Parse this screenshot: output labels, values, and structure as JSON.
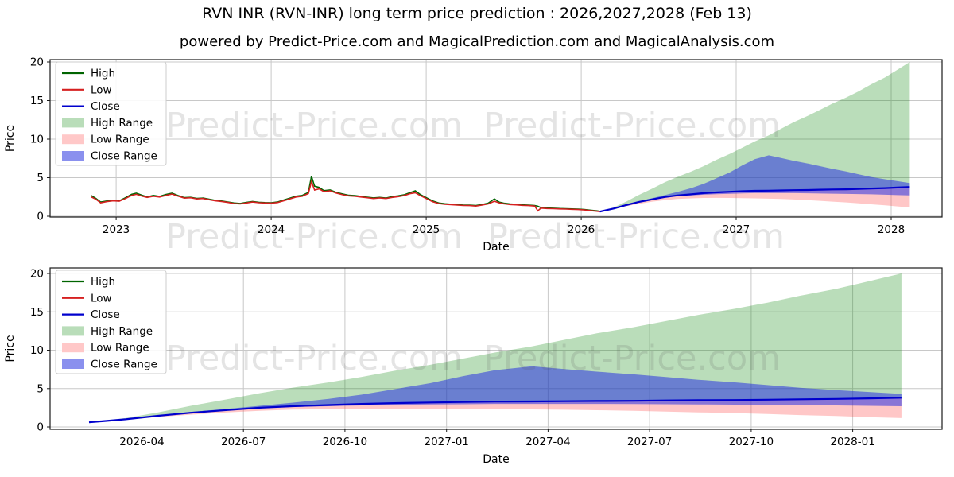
{
  "title": "RVN INR (RVN-INR) long term price prediction : 2026,2027,2028 (Feb 13)",
  "subtitle": "powered by Predict-Price.com and MagicalPrediction.com and MagicalAnalysis.com",
  "watermark_text": "Predict-Price.com",
  "axis": {
    "xlabel": "Date",
    "ylabel": "Price"
  },
  "colors": {
    "grid": "#c8c8c8",
    "spine": "#1a1a1a",
    "high_line": "#006400",
    "low_line": "#d62020",
    "close_line": "#0000cd",
    "high_range": "rgba(0,128,0,0.27)",
    "low_range": "rgba(255,70,70,0.30)",
    "close_range": "rgba(40,50,225,0.55)",
    "watermark": "rgba(90,90,90,0.16)"
  },
  "legend": [
    {
      "label": "High",
      "swatch": "line",
      "color": "#006400"
    },
    {
      "label": "Low",
      "swatch": "line",
      "color": "#d62020"
    },
    {
      "label": "Close",
      "swatch": "line",
      "color": "#0000cd"
    },
    {
      "label": "High Range",
      "swatch": "patch",
      "color": "#b9ddb9"
    },
    {
      "label": "Low Range",
      "swatch": "patch",
      "color": "#ffc8c8"
    },
    {
      "label": "Close Range",
      "swatch": "patch",
      "color": "#8a90ee"
    }
  ],
  "chart_data": {
    "type": "line",
    "history_note": "historical daily High/Low price of RVN-INR, Nov 2022 - Feb 2026, as [decimal_year, low, high]",
    "history": [
      [
        2022.84,
        2.5,
        2.68
      ],
      [
        2022.87,
        2.2,
        2.3
      ],
      [
        2022.9,
        1.75,
        1.85
      ],
      [
        2022.94,
        1.9,
        1.98
      ],
      [
        2022.98,
        2.0,
        2.06
      ],
      [
        2023.02,
        1.95,
        2.0
      ],
      [
        2023.06,
        2.3,
        2.4
      ],
      [
        2023.1,
        2.7,
        2.85
      ],
      [
        2023.13,
        2.85,
        3.0
      ],
      [
        2023.17,
        2.6,
        2.7
      ],
      [
        2023.2,
        2.45,
        2.52
      ],
      [
        2023.24,
        2.6,
        2.7
      ],
      [
        2023.28,
        2.5,
        2.58
      ],
      [
        2023.32,
        2.7,
        2.82
      ],
      [
        2023.36,
        2.88,
        3.0
      ],
      [
        2023.4,
        2.6,
        2.68
      ],
      [
        2023.44,
        2.35,
        2.42
      ],
      [
        2023.48,
        2.4,
        2.46
      ],
      [
        2023.52,
        2.25,
        2.32
      ],
      [
        2023.56,
        2.3,
        2.36
      ],
      [
        2023.6,
        2.15,
        2.22
      ],
      [
        2023.64,
        2.0,
        2.06
      ],
      [
        2023.68,
        1.92,
        1.98
      ],
      [
        2023.72,
        1.8,
        1.86
      ],
      [
        2023.76,
        1.65,
        1.72
      ],
      [
        2023.8,
        1.6,
        1.66
      ],
      [
        2023.84,
        1.72,
        1.8
      ],
      [
        2023.88,
        1.85,
        1.92
      ],
      [
        2023.92,
        1.76,
        1.82
      ],
      [
        2023.96,
        1.72,
        1.78
      ],
      [
        2024.0,
        1.7,
        1.76
      ],
      [
        2024.04,
        1.78,
        1.85
      ],
      [
        2024.08,
        2.0,
        2.1
      ],
      [
        2024.12,
        2.25,
        2.35
      ],
      [
        2024.16,
        2.5,
        2.6
      ],
      [
        2024.2,
        2.6,
        2.7
      ],
      [
        2024.24,
        2.95,
        3.1
      ],
      [
        2024.26,
        4.5,
        5.2
      ],
      [
        2024.28,
        3.4,
        3.9
      ],
      [
        2024.31,
        3.55,
        3.75
      ],
      [
        2024.34,
        3.2,
        3.32
      ],
      [
        2024.38,
        3.3,
        3.42
      ],
      [
        2024.42,
        3.0,
        3.1
      ],
      [
        2024.46,
        2.8,
        2.9
      ],
      [
        2024.5,
        2.65,
        2.72
      ],
      [
        2024.54,
        2.6,
        2.68
      ],
      [
        2024.58,
        2.5,
        2.58
      ],
      [
        2024.62,
        2.4,
        2.48
      ],
      [
        2024.66,
        2.3,
        2.38
      ],
      [
        2024.7,
        2.38,
        2.45
      ],
      [
        2024.74,
        2.3,
        2.36
      ],
      [
        2024.78,
        2.45,
        2.55
      ],
      [
        2024.82,
        2.55,
        2.65
      ],
      [
        2024.86,
        2.7,
        2.8
      ],
      [
        2024.9,
        2.95,
        3.1
      ],
      [
        2024.93,
        3.05,
        3.3
      ],
      [
        2024.96,
        2.7,
        2.85
      ],
      [
        2025.0,
        2.3,
        2.42
      ],
      [
        2025.04,
        1.9,
        2.0
      ],
      [
        2025.08,
        1.65,
        1.72
      ],
      [
        2025.12,
        1.55,
        1.62
      ],
      [
        2025.16,
        1.5,
        1.56
      ],
      [
        2025.2,
        1.45,
        1.5
      ],
      [
        2025.24,
        1.4,
        1.46
      ],
      [
        2025.28,
        1.38,
        1.44
      ],
      [
        2025.32,
        1.32,
        1.38
      ],
      [
        2025.36,
        1.45,
        1.52
      ],
      [
        2025.4,
        1.6,
        1.7
      ],
      [
        2025.44,
        1.95,
        2.25
      ],
      [
        2025.47,
        1.75,
        1.85
      ],
      [
        2025.5,
        1.62,
        1.7
      ],
      [
        2025.54,
        1.52,
        1.6
      ],
      [
        2025.58,
        1.48,
        1.54
      ],
      [
        2025.62,
        1.42,
        1.48
      ],
      [
        2025.66,
        1.38,
        1.44
      ],
      [
        2025.7,
        1.32,
        1.38
      ],
      [
        2025.72,
        0.7,
        1.3
      ],
      [
        2025.74,
        1.05,
        1.12
      ],
      [
        2025.78,
        1.0,
        1.06
      ],
      [
        2025.82,
        0.98,
        1.04
      ],
      [
        2025.86,
        0.95,
        1.0
      ],
      [
        2025.9,
        0.93,
        0.98
      ],
      [
        2025.94,
        0.9,
        0.95
      ],
      [
        2025.98,
        0.87,
        0.92
      ],
      [
        2026.02,
        0.82,
        0.87
      ],
      [
        2026.06,
        0.74,
        0.79
      ],
      [
        2026.1,
        0.65,
        0.7
      ],
      [
        2026.12,
        0.6,
        0.64
      ]
    ],
    "prediction_note": "forecast Feb 2026 - Feb 2028: Close line plus High/Low/Close range envelopes",
    "prediction": {
      "x": [
        2026.12,
        2026.21,
        2026.29,
        2026.37,
        2026.46,
        2026.54,
        2026.62,
        2026.71,
        2026.79,
        2026.87,
        2026.96,
        2027.04,
        2027.12,
        2027.21,
        2027.29,
        2027.37,
        2027.46,
        2027.54,
        2027.62,
        2027.71,
        2027.79,
        2027.87,
        2027.96,
        2028.04,
        2028.12
      ],
      "close": [
        0.6,
        1.0,
        1.45,
        1.85,
        2.2,
        2.5,
        2.7,
        2.85,
        3.0,
        3.1,
        3.18,
        3.25,
        3.3,
        3.32,
        3.35,
        3.38,
        3.4,
        3.45,
        3.48,
        3.5,
        3.55,
        3.6,
        3.65,
        3.72,
        3.8
      ],
      "close_hi": [
        0.6,
        1.02,
        1.5,
        1.95,
        2.35,
        2.75,
        3.15,
        3.65,
        4.2,
        4.9,
        5.7,
        6.6,
        7.4,
        7.9,
        7.55,
        7.2,
        6.85,
        6.5,
        6.15,
        5.8,
        5.45,
        5.1,
        4.8,
        4.55,
        4.3
      ],
      "close_lo": [
        0.6,
        0.98,
        1.42,
        1.8,
        2.15,
        2.45,
        2.6,
        2.7,
        2.8,
        2.87,
        2.92,
        2.96,
        3.0,
        3.0,
        3.0,
        3.0,
        2.98,
        2.95,
        2.93,
        2.9,
        2.88,
        2.85,
        2.8,
        2.75,
        2.7
      ],
      "high_top": [
        0.6,
        1.15,
        1.9,
        2.75,
        3.6,
        4.4,
        5.1,
        5.8,
        6.5,
        7.3,
        8.1,
        8.9,
        9.7,
        10.5,
        11.35,
        12.2,
        13.0,
        13.8,
        14.6,
        15.4,
        16.2,
        17.1,
        18.0,
        19.0,
        20.0
      ],
      "low_bottom": [
        0.6,
        0.95,
        1.3,
        1.6,
        1.9,
        2.1,
        2.25,
        2.32,
        2.37,
        2.38,
        2.37,
        2.35,
        2.32,
        2.28,
        2.24,
        2.18,
        2.1,
        2.0,
        1.9,
        1.8,
        1.68,
        1.55,
        1.42,
        1.28,
        1.15
      ]
    },
    "charts": [
      {
        "name": "overview",
        "show_history": true,
        "xlim": [
          2022.574,
          2028.328
        ],
        "ylim": [
          -0.1,
          20.31
        ],
        "yticks": [
          0,
          5,
          10,
          15,
          20
        ],
        "xticks": [
          {
            "v": 2023,
            "l": "2023"
          },
          {
            "v": 2024,
            "l": "2024"
          },
          {
            "v": 2025,
            "l": "2025"
          },
          {
            "v": 2026,
            "l": "2026"
          },
          {
            "v": 2027,
            "l": "2027"
          },
          {
            "v": 2028,
            "l": "2028"
          }
        ]
      },
      {
        "name": "forecast-detail",
        "show_history": false,
        "xlim": [
          2026.024,
          2028.22
        ],
        "ylim": [
          -0.31,
          20.73
        ],
        "yticks": [
          0,
          5,
          10,
          15,
          20
        ],
        "xticks": [
          {
            "v": 2026.25,
            "l": "2026-04"
          },
          {
            "v": 2026.5,
            "l": "2026-07"
          },
          {
            "v": 2026.75,
            "l": "2026-10"
          },
          {
            "v": 2027.0,
            "l": "2027-01"
          },
          {
            "v": 2027.25,
            "l": "2027-04"
          },
          {
            "v": 2027.5,
            "l": "2027-07"
          },
          {
            "v": 2027.75,
            "l": "2027-10"
          },
          {
            "v": 2028.0,
            "l": "2028-01"
          }
        ]
      }
    ]
  }
}
